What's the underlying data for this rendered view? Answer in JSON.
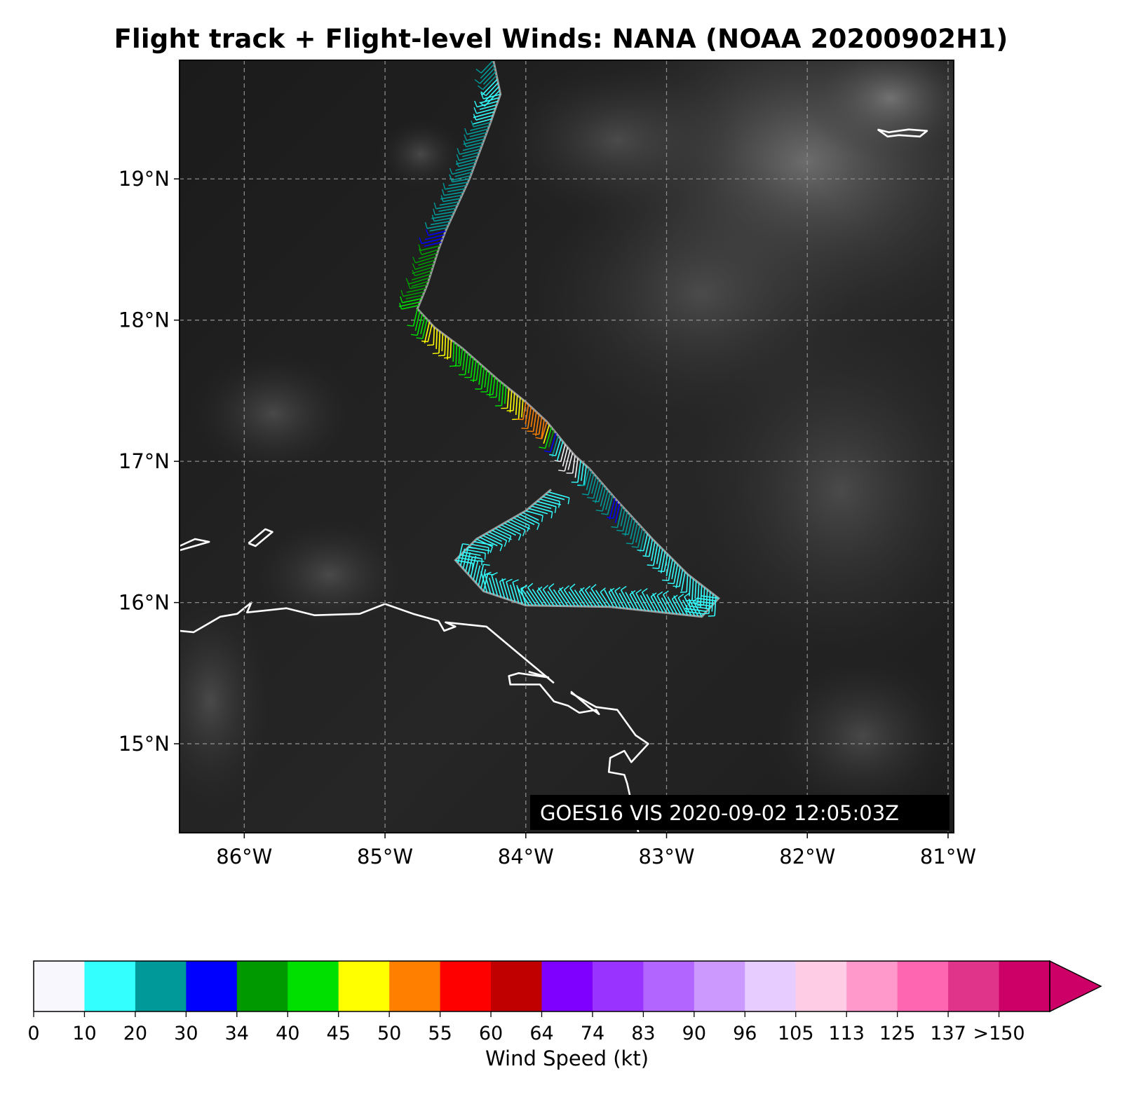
{
  "title": "Flight track + Flight-level Winds: NANA (NOAA 20200902H1)",
  "image_stamp": "GOES16 VIS 2020-09-02 12:05:03Z",
  "axes": {
    "lon_range": [
      -86.46,
      -80.96
    ],
    "lat_range": [
      14.37,
      19.84
    ],
    "lon_ticks": [
      {
        "value": -86,
        "label": "86°W"
      },
      {
        "value": -85,
        "label": "85°W"
      },
      {
        "value": -84,
        "label": "84°W"
      },
      {
        "value": -83,
        "label": "83°W"
      },
      {
        "value": -82,
        "label": "82°W"
      },
      {
        "value": -81,
        "label": "81°W"
      }
    ],
    "lat_ticks": [
      {
        "value": 19,
        "label": "19°N"
      },
      {
        "value": 18,
        "label": "18°N"
      },
      {
        "value": 17,
        "label": "17°N"
      },
      {
        "value": 16,
        "label": "16°N"
      },
      {
        "value": 15,
        "label": "15°N"
      }
    ],
    "grid": true
  },
  "colorbar": {
    "label": "Wind Speed (kt)",
    "ticks": [
      "0",
      "10",
      "20",
      "30",
      "34",
      "40",
      "45",
      "50",
      "55",
      "60",
      "64",
      "74",
      "83",
      "90",
      "96",
      "105",
      "113",
      "125",
      "137",
      ">150"
    ],
    "colors": [
      "#f7f7fd",
      "#33ffff",
      "#009999",
      "#0000ff",
      "#009900",
      "#00e000",
      "#ffff00",
      "#ff8000",
      "#ff0000",
      "#c00000",
      "#8000ff",
      "#9933ff",
      "#b366ff",
      "#cc99ff",
      "#e6ccff",
      "#ffcce6",
      "#ff99cc",
      "#ff66b2",
      "#e0338a",
      "#cc0066"
    ],
    "extend": "max"
  },
  "chart_data": {
    "type": "map",
    "title": "Flight track + Flight-level Winds: NANA (NOAA 20200902H1)",
    "flight_track": [
      {
        "lon": -84.23,
        "lat": 19.84,
        "wind_kt": 25
      },
      {
        "lon": -84.18,
        "lat": 19.6,
        "wind_kt": 15
      },
      {
        "lon": -84.25,
        "lat": 19.4,
        "wind_kt": 20
      },
      {
        "lon": -84.4,
        "lat": 19.0,
        "wind_kt": 20
      },
      {
        "lon": -84.57,
        "lat": 18.63,
        "wind_kt": 30
      },
      {
        "lon": -84.62,
        "lat": 18.5,
        "wind_kt": 36
      },
      {
        "lon": -84.7,
        "lat": 18.25,
        "wind_kt": 38
      },
      {
        "lon": -84.77,
        "lat": 18.08,
        "wind_kt": 42
      },
      {
        "lon": -84.65,
        "lat": 17.95,
        "wind_kt": 47
      },
      {
        "lon": -84.45,
        "lat": 17.8,
        "wind_kt": 44
      },
      {
        "lon": -84.2,
        "lat": 17.58,
        "wind_kt": 42
      },
      {
        "lon": -84.0,
        "lat": 17.42,
        "wind_kt": 50
      },
      {
        "lon": -83.85,
        "lat": 17.28,
        "wind_kt": 52
      },
      {
        "lon": -83.72,
        "lat": 17.12,
        "wind_kt": 8
      },
      {
        "lon": -83.65,
        "lat": 17.04,
        "wind_kt": 5
      },
      {
        "lon": -83.55,
        "lat": 16.95,
        "wind_kt": 22
      },
      {
        "lon": -83.35,
        "lat": 16.72,
        "wind_kt": 31
      },
      {
        "lon": -83.1,
        "lat": 16.45,
        "wind_kt": 18
      },
      {
        "lon": -82.85,
        "lat": 16.2,
        "wind_kt": 18
      },
      {
        "lon": -82.63,
        "lat": 16.03,
        "wind_kt": 16
      },
      {
        "lon": -82.75,
        "lat": 15.9,
        "wind_kt": 17
      },
      {
        "lon": -83.4,
        "lat": 15.97,
        "wind_kt": 15
      },
      {
        "lon": -84.0,
        "lat": 15.98,
        "wind_kt": 14
      },
      {
        "lon": -84.3,
        "lat": 16.08,
        "wind_kt": 12
      },
      {
        "lon": -84.5,
        "lat": 16.3,
        "wind_kt": 15
      },
      {
        "lon": -84.35,
        "lat": 16.45,
        "wind_kt": 16
      },
      {
        "lon": -84.0,
        "lat": 16.65,
        "wind_kt": 18
      },
      {
        "lon": -83.82,
        "lat": 16.8,
        "wind_kt": 17
      }
    ],
    "coastlines": [
      [
        [
          -86.46,
          15.8
        ],
        [
          -86.36,
          15.79
        ],
        [
          -86.17,
          15.9
        ],
        [
          -86.05,
          15.92
        ],
        [
          -85.95,
          16.0
        ],
        [
          -85.98,
          15.93
        ],
        [
          -85.7,
          15.96
        ],
        [
          -85.5,
          15.91
        ],
        [
          -85.18,
          15.92
        ],
        [
          -85.0,
          15.99
        ],
        [
          -84.8,
          15.92
        ],
        [
          -84.62,
          15.87
        ],
        [
          -84.58,
          15.8
        ],
        [
          -84.5,
          15.83
        ],
        [
          -84.57,
          15.86
        ],
        [
          -84.28,
          15.83
        ],
        [
          -84.1,
          15.68
        ],
        [
          -83.8,
          15.43
        ]
      ],
      [
        [
          -83.98,
          15.51
        ],
        [
          -83.84,
          15.47
        ],
        [
          -84.05,
          15.5
        ],
        [
          -84.12,
          15.48
        ],
        [
          -84.11,
          15.42
        ],
        [
          -83.9,
          15.42
        ],
        [
          -83.8,
          15.3
        ],
        [
          -83.7,
          15.27
        ],
        [
          -83.62,
          15.22
        ],
        [
          -83.5,
          15.24
        ],
        [
          -83.48,
          15.21
        ],
        [
          -83.55,
          15.26
        ],
        [
          -83.68,
          15.37
        ]
      ],
      [
        [
          -83.68,
          15.36
        ],
        [
          -83.5,
          15.26
        ],
        [
          -83.35,
          15.24
        ],
        [
          -83.22,
          15.06
        ],
        [
          -83.13,
          15.0
        ],
        [
          -83.25,
          14.87
        ],
        [
          -83.3,
          14.95
        ],
        [
          -83.4,
          14.9
        ],
        [
          -83.41,
          14.8
        ],
        [
          -83.3,
          14.78
        ],
        [
          -83.28,
          14.72
        ],
        [
          -83.2,
          14.37
        ]
      ],
      [
        [
          -86.46,
          16.4
        ],
        [
          -86.35,
          16.45
        ],
        [
          -86.25,
          16.43
        ],
        [
          -86.46,
          16.37
        ]
      ],
      [
        [
          -85.97,
          16.42
        ],
        [
          -85.85,
          16.52
        ],
        [
          -85.8,
          16.5
        ],
        [
          -85.92,
          16.4
        ],
        [
          -85.97,
          16.42
        ]
      ],
      [
        [
          -81.5,
          19.35
        ],
        [
          -81.43,
          19.3
        ],
        [
          -81.35,
          19.31
        ],
        [
          -81.2,
          19.3
        ],
        [
          -81.15,
          19.34
        ],
        [
          -81.28,
          19.35
        ],
        [
          -81.42,
          19.33
        ],
        [
          -81.5,
          19.35
        ]
      ]
    ]
  }
}
